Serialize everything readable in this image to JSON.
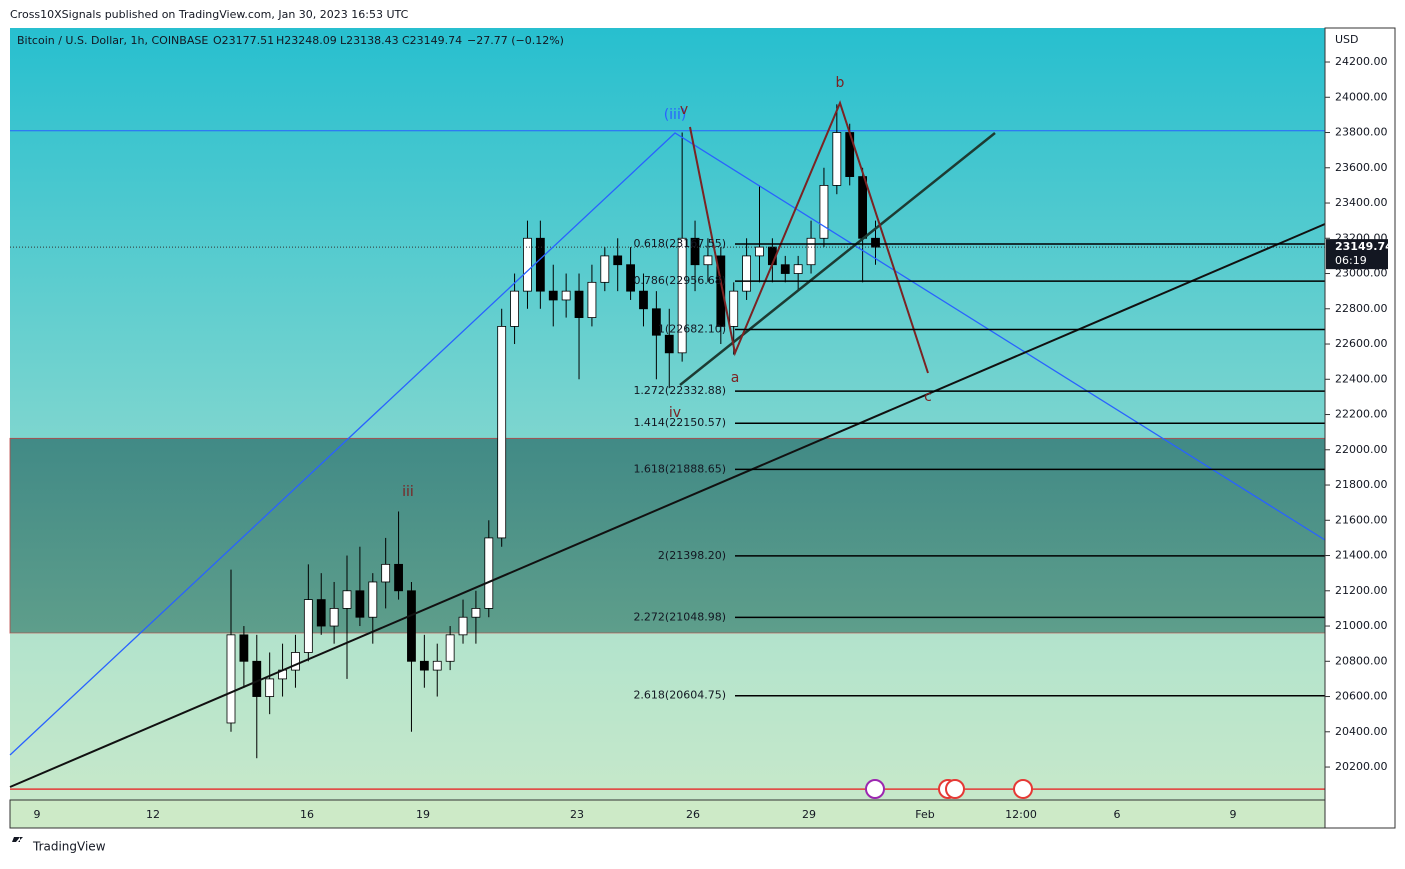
{
  "header": {
    "publisher": "Cross10XSignals published on TradingView.com, Jan 30, 2023 16:53 UTC"
  },
  "legend": {
    "symbol": "Bitcoin / U.S. Dollar, 1h, COINBASE",
    "open": "O23177.51",
    "high": "H23248.09",
    "low": "L23138.43",
    "close": "C23149.74",
    "change": "−27.77 (−0.12%)"
  },
  "price_axis": {
    "unit": "USD",
    "ylim": [
      20013,
      24393
    ],
    "ticks": [
      {
        "value": 20200,
        "label": "20200.00"
      },
      {
        "value": 20400,
        "label": "20400.00"
      },
      {
        "value": 20600,
        "label": "20600.00"
      },
      {
        "value": 20800,
        "label": "20800.00"
      },
      {
        "value": 21000,
        "label": "21000.00"
      },
      {
        "value": 21200,
        "label": "21200.00"
      },
      {
        "value": 21400,
        "label": "21400.00"
      },
      {
        "value": 21600,
        "label": "21600.00"
      },
      {
        "value": 21800,
        "label": "21800.00"
      },
      {
        "value": 22000,
        "label": "22000.00"
      },
      {
        "value": 22200,
        "label": "22200.00"
      },
      {
        "value": 22400,
        "label": "22400.00"
      },
      {
        "value": 22600,
        "label": "22600.00"
      },
      {
        "value": 22800,
        "label": "22800.00"
      },
      {
        "value": 23000,
        "label": "23000.00"
      },
      {
        "value": 23200,
        "label": "23200.00"
      },
      {
        "value": 23400,
        "label": "23400.00"
      },
      {
        "value": 23600,
        "label": "23600.00"
      },
      {
        "value": 23800,
        "label": "23800.00"
      },
      {
        "value": 24000,
        "label": "24000.00"
      },
      {
        "value": 24200,
        "label": "24200.00"
      }
    ]
  },
  "time_axis": {
    "labels": [
      "9",
      "12",
      "16",
      "19",
      "23",
      "26",
      "29",
      "Feb",
      "12:00",
      "6",
      "9"
    ]
  },
  "candles": {
    "ohlc": [
      [
        20450,
        21320,
        20400,
        20950
      ],
      [
        20950,
        21000,
        20650,
        20800
      ],
      [
        20800,
        20950,
        20250,
        20600
      ],
      [
        20600,
        20850,
        20500,
        20700
      ],
      [
        20700,
        20900,
        20600,
        20750
      ],
      [
        20750,
        20950,
        20650,
        20850
      ],
      [
        20850,
        21350,
        20800,
        21150
      ],
      [
        21150,
        21300,
        20950,
        21000
      ],
      [
        21000,
        21250,
        20900,
        21100
      ],
      [
        21100,
        21400,
        20700,
        21200
      ],
      [
        21200,
        21450,
        21000,
        21050
      ],
      [
        21050,
        21300,
        20900,
        21250
      ],
      [
        21250,
        21500,
        21100,
        21350
      ],
      [
        21350,
        21650,
        21150,
        21200
      ],
      [
        21200,
        21250,
        20400,
        20800
      ],
      [
        20800,
        20950,
        20650,
        20750
      ],
      [
        20750,
        20900,
        20600,
        20800
      ],
      [
        20800,
        21000,
        20750,
        20950
      ],
      [
        20950,
        21150,
        20900,
        21050
      ],
      [
        21050,
        21200,
        20900,
        21100
      ],
      [
        21100,
        21600,
        21050,
        21500
      ],
      [
        21500,
        22800,
        21450,
        22700
      ],
      [
        22700,
        23000,
        22600,
        22900
      ],
      [
        22900,
        23300,
        22800,
        23200
      ],
      [
        23200,
        23300,
        22800,
        22900
      ],
      [
        22900,
        23050,
        22700,
        22850
      ],
      [
        22850,
        23000,
        22750,
        22900
      ],
      [
        22900,
        23000,
        22400,
        22750
      ],
      [
        22750,
        23050,
        22700,
        22950
      ],
      [
        22950,
        23150,
        22900,
        23100
      ],
      [
        23100,
        23200,
        22900,
        23050
      ],
      [
        23050,
        23150,
        22850,
        22900
      ],
      [
        22900,
        23000,
        22700,
        22800
      ],
      [
        22800,
        22900,
        22400,
        22650
      ],
      [
        22650,
        22800,
        22350,
        22550
      ],
      [
        22550,
        23800,
        22500,
        23200
      ],
      [
        23200,
        23300,
        22900,
        23050
      ],
      [
        23050,
        23200,
        22950,
        23100
      ],
      [
        23100,
        23150,
        22600,
        22700
      ],
      [
        22700,
        22950,
        22540,
        22900
      ],
      [
        22900,
        23200,
        22850,
        23100
      ],
      [
        23100,
        23500,
        22950,
        23150
      ],
      [
        23150,
        23200,
        22950,
        23050
      ],
      [
        23050,
        23100,
        22950,
        23000
      ],
      [
        23000,
        23100,
        22900,
        23050
      ],
      [
        23050,
        23300,
        23000,
        23200
      ],
      [
        23200,
        23600,
        23150,
        23500
      ],
      [
        23500,
        23960,
        23450,
        23800
      ],
      [
        23800,
        23850,
        23500,
        23550
      ],
      [
        23550,
        23600,
        22950,
        23200
      ],
      [
        23200,
        23300,
        23050,
        23149.74
      ]
    ]
  },
  "fib_levels": [
    {
      "label": "0.618(23167.55)",
      "price": 23167.55
    },
    {
      "label": "0.786(22956.68)",
      "price": 22956.68
    },
    {
      "label": "1(22682.10)",
      "price": 22682.1
    },
    {
      "label": "1.272(22332.88)",
      "price": 22332.88
    },
    {
      "label": "1.414(22150.57)",
      "price": 22150.57
    },
    {
      "label": "1.618(21888.65)",
      "price": 21888.65
    },
    {
      "label": "2(21398.20)",
      "price": 21398.2
    },
    {
      "label": "2.272(21048.98)",
      "price": 21048.98
    },
    {
      "label": "2.618(20604.75)",
      "price": 20604.75
    }
  ],
  "levels": {
    "resistance": 23810,
    "support": 20075,
    "zone": [
      20960,
      22065
    ]
  },
  "waves": [
    "(iii)",
    "v",
    "b",
    "a",
    "c",
    "iv",
    "iii"
  ],
  "price_badge": {
    "price": "23149.74",
    "countdown": "06:19"
  },
  "footer": {
    "brand": "TradingView"
  }
}
